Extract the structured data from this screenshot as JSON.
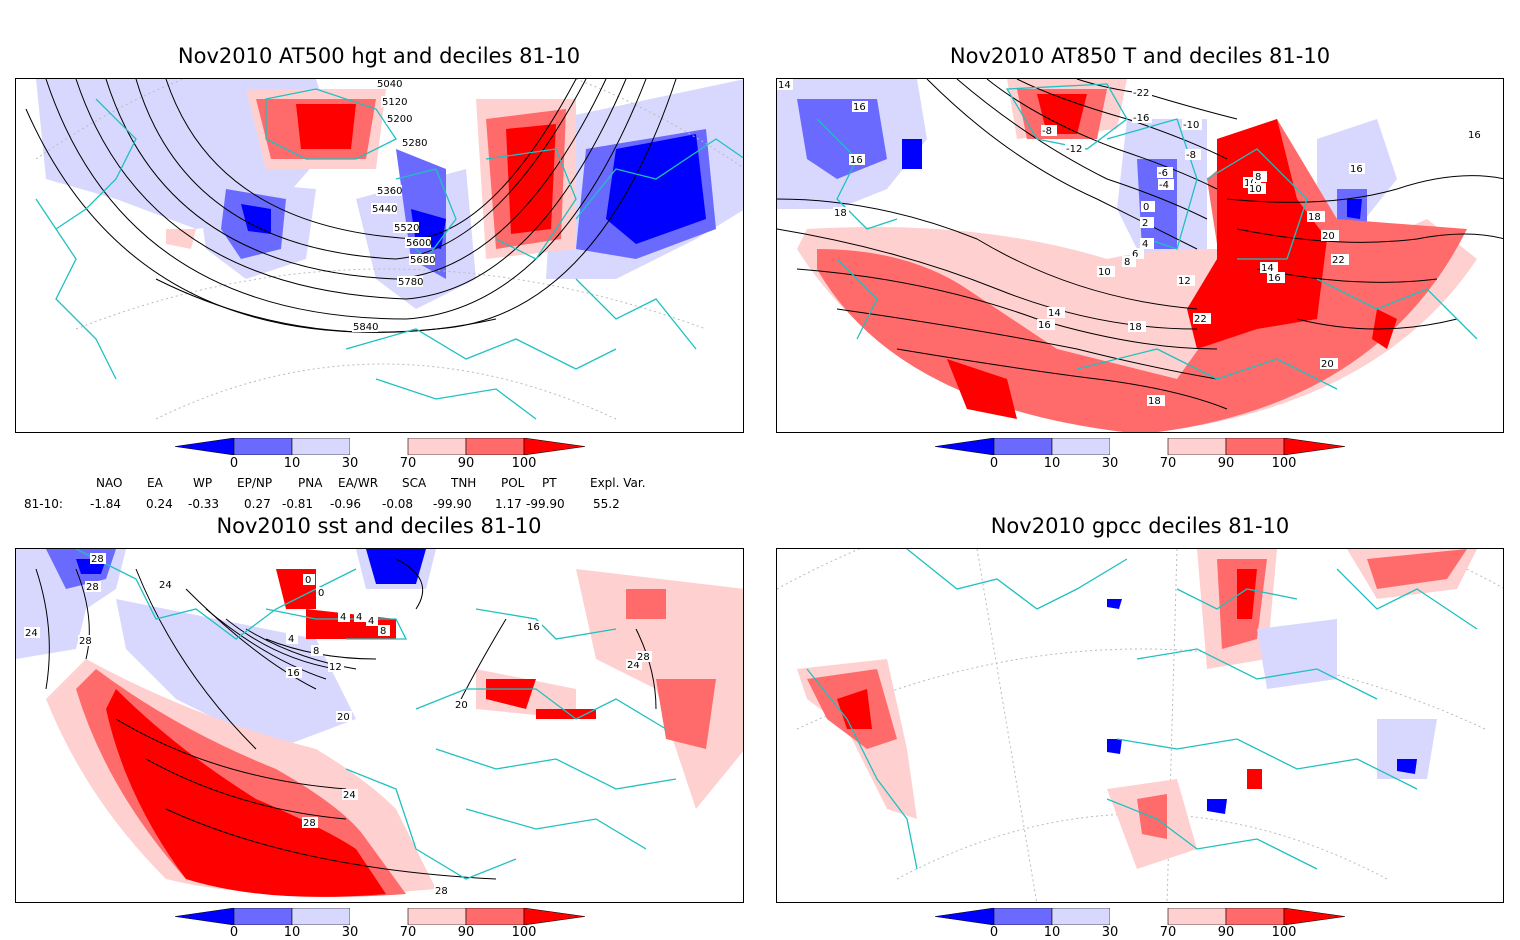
{
  "panels": [
    {
      "id": "p1",
      "title": "Nov2010 AT500 hgt and deciles 81-10",
      "contour_labels": [
        "5040",
        "5120",
        "5200",
        "5280",
        "5360",
        "5440",
        "5520",
        "5600",
        "5680",
        "5780",
        "5840"
      ]
    },
    {
      "id": "p2",
      "title": "Nov2010 AT850 T and deciles 81-10",
      "contour_labels": [
        "14",
        "16",
        "16",
        "18",
        "16",
        "-8",
        "-12",
        "-16",
        "-22",
        "-10",
        "-8",
        "-6",
        "-4",
        "0",
        "2",
        "4",
        "6",
        "8",
        "10",
        "10",
        "12",
        "14",
        "16",
        "18",
        "18",
        "20",
        "22",
        "20",
        "22",
        "14",
        "16",
        "16",
        "18",
        "10",
        "8"
      ]
    },
    {
      "id": "p3",
      "title": "Nov2010 sst and deciles 81-10",
      "contour_labels": [
        "28",
        "28",
        "24",
        "24",
        "28",
        "0",
        "0",
        "4",
        "8",
        "12",
        "16",
        "20",
        "24",
        "28",
        "28",
        "16",
        "20",
        "24",
        "28",
        "4",
        "4",
        "4",
        "8"
      ]
    },
    {
      "id": "p4",
      "title": "Nov2010 gpcc deciles 81-10",
      "contour_labels": []
    }
  ],
  "colorbar": {
    "labels": [
      "0",
      "10",
      "30",
      "70",
      "90",
      "100"
    ],
    "colors": [
      "#0000ff",
      "#6a6aff",
      "#d8d8ff",
      "#ffffff",
      "#ffd0d0",
      "#ff6a6a",
      "#ff0000"
    ]
  },
  "indices": {
    "headers": [
      "NAO",
      "EA",
      "WP",
      "EP/NP",
      "PNA",
      "EA/WR",
      "SCA",
      "TNH",
      "POL",
      "PT",
      "Expl. Var."
    ],
    "row_label": "81-10:",
    "values": [
      "-1.84",
      "0.24",
      "-0.33",
      "0.27",
      "-0.81",
      "-0.96",
      "-0.08",
      "-99.90",
      "1.17",
      "-99.90",
      "55.2"
    ]
  }
}
